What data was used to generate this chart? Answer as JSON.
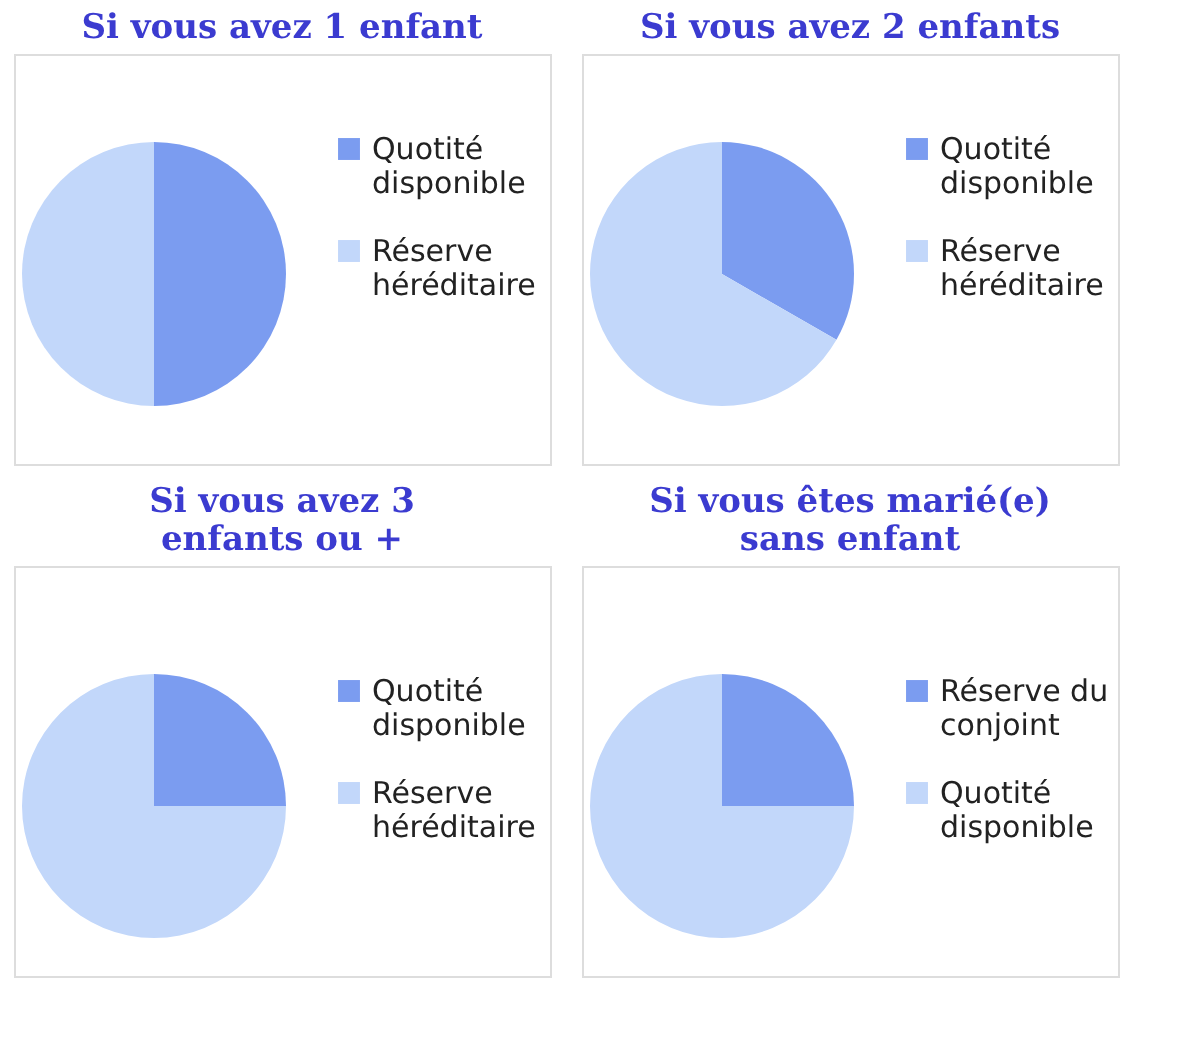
{
  "chart_data": [
    {
      "type": "pie",
      "title": "Si vous avez 1 enfant",
      "categories": [
        "Quotité disponible",
        "Réserve héréditaire"
      ],
      "values": [
        50,
        50
      ],
      "colors": [
        "#7b9cf0",
        "#c2d7fa"
      ],
      "legend": "right"
    },
    {
      "type": "pie",
      "title": "Si vous avez 2 enfants",
      "categories": [
        "Quotité disponible",
        "Réserve héréditaire"
      ],
      "values": [
        33.3,
        66.7
      ],
      "colors": [
        "#7b9cf0",
        "#c2d7fa"
      ],
      "legend": "right"
    },
    {
      "type": "pie",
      "title": "Si vous avez 3\nenfants ou +",
      "categories": [
        "Quotité disponible",
        "Réserve héréditaire"
      ],
      "values": [
        25,
        75
      ],
      "colors": [
        "#7b9cf0",
        "#c2d7fa"
      ],
      "legend": "right"
    },
    {
      "type": "pie",
      "title": "Si vous êtes marié(e)\nsans enfant",
      "categories": [
        "Réserve du conjoint",
        "Quotité disponible"
      ],
      "values": [
        25,
        75
      ],
      "colors": [
        "#7b9cf0",
        "#c2d7fa"
      ],
      "legend": "right"
    }
  ]
}
